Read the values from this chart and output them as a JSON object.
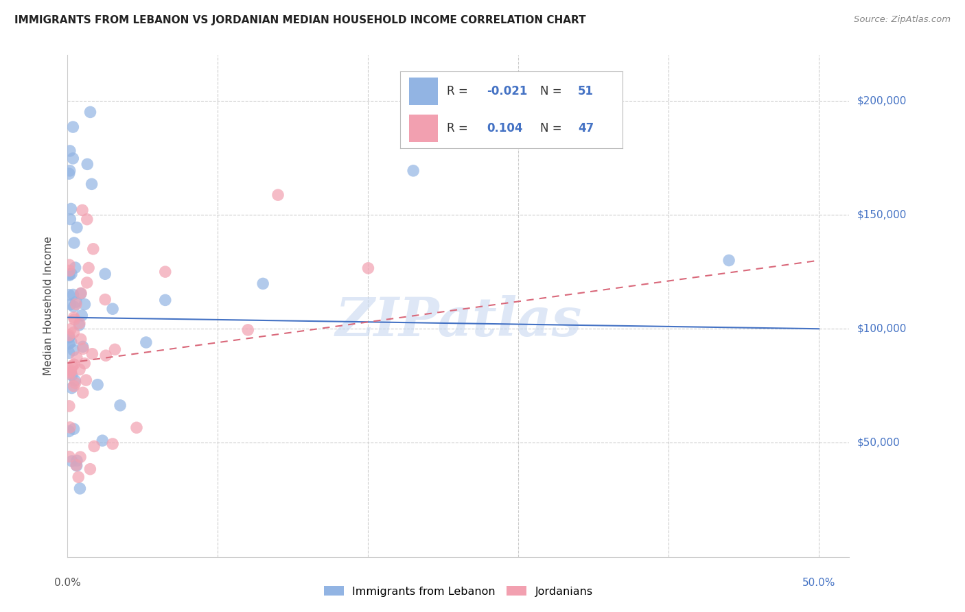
{
  "title": "IMMIGRANTS FROM LEBANON VS JORDANIAN MEDIAN HOUSEHOLD INCOME CORRELATION CHART",
  "source": "Source: ZipAtlas.com",
  "ylabel": "Median Household Income",
  "ytick_labels": [
    "$50,000",
    "$100,000",
    "$150,000",
    "$200,000"
  ],
  "ytick_values": [
    50000,
    100000,
    150000,
    200000
  ],
  "ylim": [
    0,
    220000
  ],
  "xlim": [
    0,
    0.52
  ],
  "blue_color": "#92b4e3",
  "pink_color": "#f2a0b0",
  "blue_line_color": "#4472c4",
  "pink_line_color": "#d9687a",
  "watermark": "ZIPatlas",
  "watermark_color": "#c8d8f0",
  "blue_R": -0.021,
  "blue_N": 51,
  "pink_R": 0.104,
  "pink_N": 47,
  "blue_intercept": 103000,
  "blue_slope": -6000,
  "pink_intercept": 88000,
  "pink_slope": 120000,
  "legend_label1": "Immigrants from Lebanon",
  "legend_label2": "Jordanians"
}
